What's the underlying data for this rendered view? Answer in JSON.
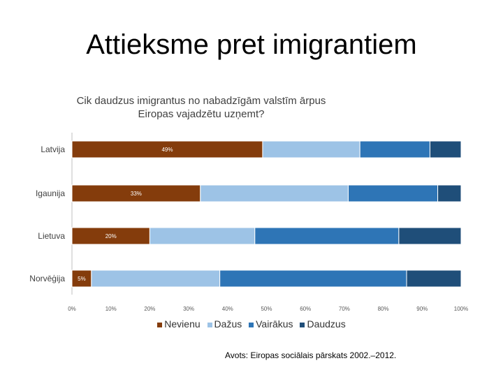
{
  "slide": {
    "title": "Attieksme pret imigrantiem",
    "source": "Avots: Eiropas sociālais pārskats 2002.–2012."
  },
  "chart_data": {
    "type": "bar",
    "orientation": "horizontal",
    "stacked": true,
    "percent_stacked": true,
    "title_lines": [
      "Cik daudzus imigrantus no nabadzīgām valstīm ārpus",
      "Eiropas vajadzētu uzņemt?"
    ],
    "categories": [
      "Latvija",
      "Igaunija",
      "Lietuva",
      "Norvēģija"
    ],
    "series": [
      {
        "name": "Nevienu",
        "color": "#843C0C",
        "values": [
          49,
          33,
          20,
          5
        ],
        "labels": [
          "49%",
          "33%",
          "20%",
          "5%"
        ]
      },
      {
        "name": "Dažus",
        "color": "#9DC3E6",
        "values": [
          25,
          38,
          27,
          33
        ]
      },
      {
        "name": "Vairākus",
        "color": "#2E75B6",
        "values": [
          18,
          23,
          37,
          48
        ]
      },
      {
        "name": "Daudzus",
        "color": "#1F4E79",
        "values": [
          8,
          6,
          16,
          14
        ]
      }
    ],
    "x_ticks": [
      "0%",
      "10%",
      "20%",
      "30%",
      "40%",
      "50%",
      "60%",
      "70%",
      "80%",
      "90%",
      "100%"
    ],
    "xlim": [
      0,
      100
    ],
    "grid": false,
    "legend_position": "bottom"
  }
}
